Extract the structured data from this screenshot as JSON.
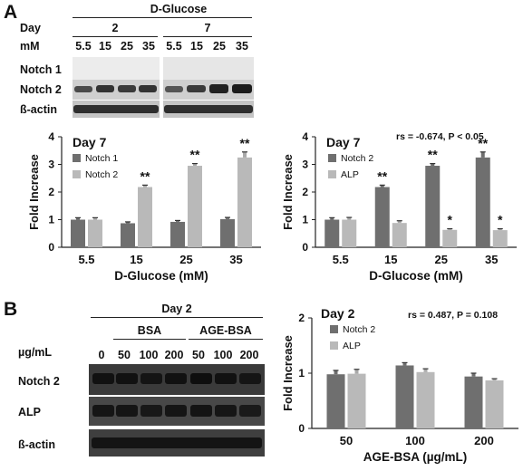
{
  "panel_a": {
    "letter": "A",
    "header": "D-Glucose",
    "day_label": "Day",
    "day_values": [
      "2",
      "7"
    ],
    "mm_label": "mM",
    "lane_labels": [
      "5.5",
      "15",
      "25",
      "35",
      "5.5",
      "15",
      "25",
      "35"
    ],
    "blot_rows": [
      "Notch 1",
      "Notch 2",
      "ß-actin"
    ]
  },
  "panel_b": {
    "letter": "B",
    "day_header": "Day 2",
    "groups": [
      "BSA",
      "AGE-BSA"
    ],
    "unit_label": "µg/mL",
    "lane_labels": [
      "0",
      "50",
      "100",
      "200",
      "50",
      "100",
      "200"
    ],
    "blot_rows": [
      "Notch 2",
      "ALP",
      "ß-actin"
    ]
  },
  "chart_data": [
    {
      "type": "bar",
      "title": "Day 7",
      "xlabel": "D-Glucose (mM)",
      "ylabel": "Fold Increase",
      "ylim": [
        0,
        4
      ],
      "yticks": [
        "0",
        "1",
        "2",
        "3",
        "4"
      ],
      "categories": [
        "5.5",
        "15",
        "25",
        "35"
      ],
      "series": [
        {
          "name": "Notch 1",
          "color": "#6f6f6f",
          "values": [
            1.0,
            0.87,
            0.92,
            1.02
          ],
          "errors": [
            0.07,
            0.05,
            0.05,
            0.06
          ]
        },
        {
          "name": "Notch 2",
          "color": "#b9b9b9",
          "values": [
            1.0,
            2.18,
            2.95,
            3.25
          ],
          "errors": [
            0.07,
            0.07,
            0.08,
            0.2
          ]
        }
      ],
      "annotations": [
        "",
        "**",
        "**",
        "**"
      ]
    },
    {
      "type": "bar",
      "title": "Day 7",
      "stat": "rs = -0.674, P < 0.05",
      "xlabel": "D-Glucose (mM)",
      "ylabel": "Fold Increase",
      "ylim": [
        0,
        4
      ],
      "yticks": [
        "0",
        "1",
        "2",
        "3",
        "4"
      ],
      "categories": [
        "5.5",
        "15",
        "25",
        "35"
      ],
      "series": [
        {
          "name": "Notch 2",
          "color": "#6f6f6f",
          "values": [
            1.0,
            2.18,
            2.95,
            3.25
          ],
          "errors": [
            0.07,
            0.07,
            0.08,
            0.2
          ],
          "marks": [
            "",
            "**",
            "**",
            "**"
          ]
        },
        {
          "name": "ALP",
          "color": "#b9b9b9",
          "values": [
            1.0,
            0.88,
            0.63,
            0.62
          ],
          "errors": [
            0.08,
            0.08,
            0.04,
            0.05
          ],
          "marks": [
            "",
            "",
            "*",
            "*"
          ]
        }
      ]
    },
    {
      "type": "bar",
      "title": "Day 2",
      "stat": "rs = 0.487, P = 0.108",
      "xlabel": "AGE-BSA (µg/mL)",
      "ylabel": "Fold Increase",
      "ylim": [
        0,
        2
      ],
      "yticks": [
        "0",
        "1",
        "2"
      ],
      "categories": [
        "50",
        "100",
        "200"
      ],
      "series": [
        {
          "name": "Notch 2",
          "color": "#6f6f6f",
          "values": [
            0.98,
            1.14,
            0.94
          ],
          "errors": [
            0.07,
            0.05,
            0.06
          ]
        },
        {
          "name": "ALP",
          "color": "#b9b9b9",
          "values": [
            0.99,
            1.02,
            0.87
          ],
          "errors": [
            0.08,
            0.06,
            0.03
          ]
        }
      ]
    }
  ]
}
